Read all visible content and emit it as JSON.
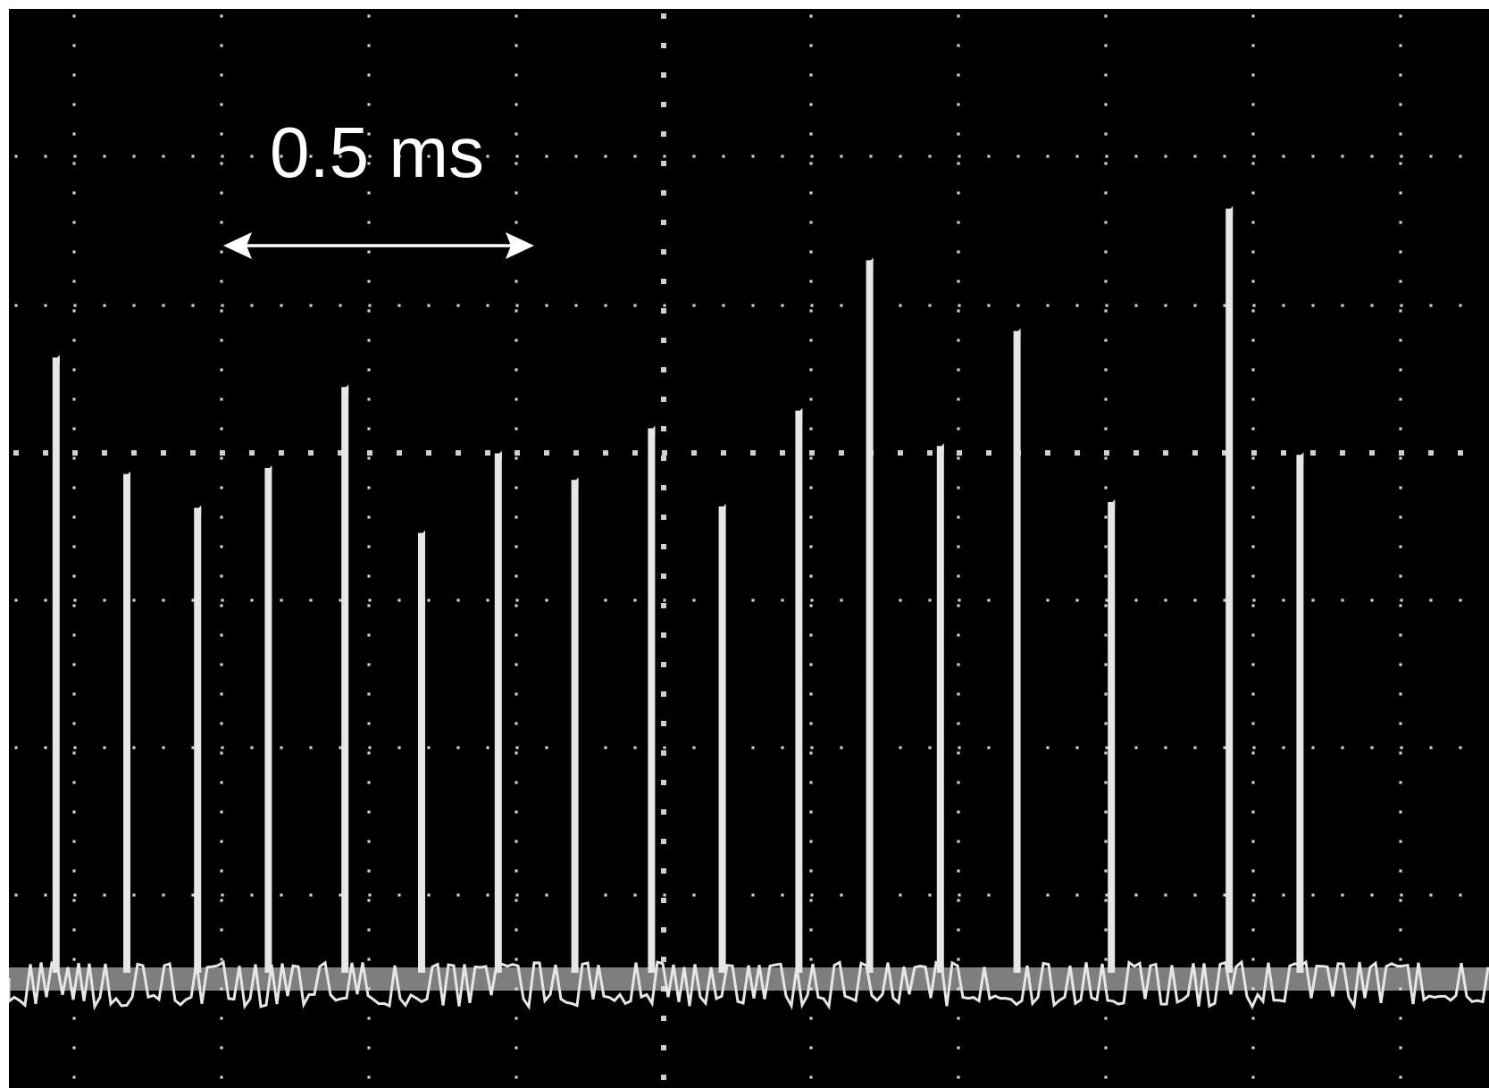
{
  "colors": {
    "screen": "#000000",
    "trace": "#e6e6e6",
    "grid_dots": "#cfcfcf",
    "annotation": "#ffffff"
  },
  "annotation": {
    "label": "0.5 ms",
    "span_ms": 0.5
  },
  "chart_data": {
    "type": "oscilloscope",
    "title": "",
    "xlabel": "",
    "ylabel": "",
    "x_unit": "ms",
    "grid": true,
    "xlim": [
      0,
      2.27
    ],
    "ylim": [
      0,
      7
    ],
    "pulses": [
      {
        "t": 0.08,
        "amplitude": 4.15
      },
      {
        "t": 0.2,
        "amplitude": 3.36
      },
      {
        "t": 0.32,
        "amplitude": 3.13
      },
      {
        "t": 0.44,
        "amplitude": 3.4
      },
      {
        "t": 0.57,
        "amplitude": 3.95
      },
      {
        "t": 0.7,
        "amplitude": 2.96
      },
      {
        "t": 0.83,
        "amplitude": 3.5
      },
      {
        "t": 0.96,
        "amplitude": 3.32
      },
      {
        "t": 1.09,
        "amplitude": 3.67
      },
      {
        "t": 1.21,
        "amplitude": 3.14
      },
      {
        "t": 1.34,
        "amplitude": 3.79
      },
      {
        "t": 1.46,
        "amplitude": 4.81
      },
      {
        "t": 1.58,
        "amplitude": 3.55
      },
      {
        "t": 1.71,
        "amplitude": 4.33
      },
      {
        "t": 1.87,
        "amplitude": 3.17
      },
      {
        "t": 2.07,
        "amplitude": 5.16
      },
      {
        "t": 2.19,
        "amplitude": 3.49
      }
    ]
  }
}
